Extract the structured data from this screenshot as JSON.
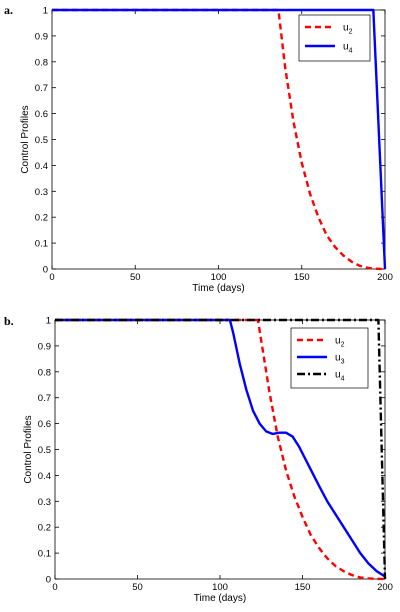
{
  "chart_data": [
    {
      "panel_label": "a.",
      "type": "line",
      "xlabel": "Time (days)",
      "ylabel": "Control Profiles",
      "xlim": [
        0,
        200
      ],
      "ylim": [
        0,
        1
      ],
      "xticks": [
        "0",
        "50",
        "100",
        "150",
        "200"
      ],
      "yticks": [
        "0",
        "0.1",
        "0.2",
        "0.3",
        "0.4",
        "0.5",
        "0.6",
        "0.7",
        "0.8",
        "0.9",
        "1"
      ],
      "legend_position": "top-right",
      "grid": false,
      "series": [
        {
          "name": "u",
          "subscript": "2",
          "color": "#ff0000",
          "style": "dashed",
          "points": [
            [
              0,
              1
            ],
            [
              136,
              1
            ],
            [
              140,
              0.78
            ],
            [
              145,
              0.57
            ],
            [
              150,
              0.41
            ],
            [
              155,
              0.29
            ],
            [
              160,
              0.2
            ],
            [
              165,
              0.13
            ],
            [
              170,
              0.085
            ],
            [
              175,
              0.052
            ],
            [
              180,
              0.028
            ],
            [
              185,
              0.012
            ],
            [
              190,
              0.004
            ],
            [
              195,
              0.001
            ],
            [
              200,
              0
            ]
          ]
        },
        {
          "name": "u",
          "subscript": "4",
          "color": "#0000ff",
          "style": "solid",
          "points": [
            [
              0,
              1
            ],
            [
              193,
              1
            ],
            [
              200,
              0
            ]
          ]
        }
      ]
    },
    {
      "panel_label": "b.",
      "type": "line",
      "xlabel": "Time (days)",
      "ylabel": "Control Profiles",
      "xlim": [
        0,
        200
      ],
      "ylim": [
        0,
        1
      ],
      "xticks": [
        "0",
        "50",
        "100",
        "150",
        "200"
      ],
      "yticks": [
        "0",
        "0.1",
        "0.2",
        "0.3",
        "0.4",
        "0.5",
        "0.6",
        "0.7",
        "0.8",
        "0.9",
        "1"
      ],
      "legend_position": "top-right",
      "grid": false,
      "series": [
        {
          "name": "u",
          "subscript": "2",
          "color": "#ff0000",
          "style": "dashed",
          "points": [
            [
              0,
              1
            ],
            [
              123,
              1
            ],
            [
              126,
              0.88
            ],
            [
              130,
              0.72
            ],
            [
              135,
              0.55
            ],
            [
              140,
              0.42
            ],
            [
              145,
              0.32
            ],
            [
              150,
              0.24
            ],
            [
              155,
              0.17
            ],
            [
              160,
              0.12
            ],
            [
              165,
              0.08
            ],
            [
              170,
              0.05
            ],
            [
              175,
              0.03
            ],
            [
              180,
              0.015
            ],
            [
              185,
              0.006
            ],
            [
              190,
              0.002
            ],
            [
              195,
              0.0005
            ],
            [
              200,
              0
            ]
          ]
        },
        {
          "name": "u",
          "subscript": "3",
          "color": "#0000ff",
          "style": "solid",
          "points": [
            [
              0,
              1
            ],
            [
              106,
              1
            ],
            [
              108,
              0.95
            ],
            [
              112,
              0.83
            ],
            [
              116,
              0.73
            ],
            [
              120,
              0.65
            ],
            [
              124,
              0.6
            ],
            [
              128,
              0.57
            ],
            [
              132,
              0.56
            ],
            [
              136,
              0.565
            ],
            [
              140,
              0.565
            ],
            [
              144,
              0.55
            ],
            [
              148,
              0.51
            ],
            [
              152,
              0.46
            ],
            [
              156,
              0.41
            ],
            [
              160,
              0.36
            ],
            [
              165,
              0.3
            ],
            [
              170,
              0.25
            ],
            [
              175,
              0.2
            ],
            [
              180,
              0.15
            ],
            [
              185,
              0.1
            ],
            [
              190,
              0.06
            ],
            [
              195,
              0.03
            ],
            [
              200,
              0.01
            ]
          ]
        },
        {
          "name": "u",
          "subscript": "4",
          "color": "#000000",
          "style": "dashdot",
          "points": [
            [
              0,
              1
            ],
            [
              196,
              1
            ],
            [
              200,
              0
            ]
          ]
        }
      ]
    }
  ]
}
